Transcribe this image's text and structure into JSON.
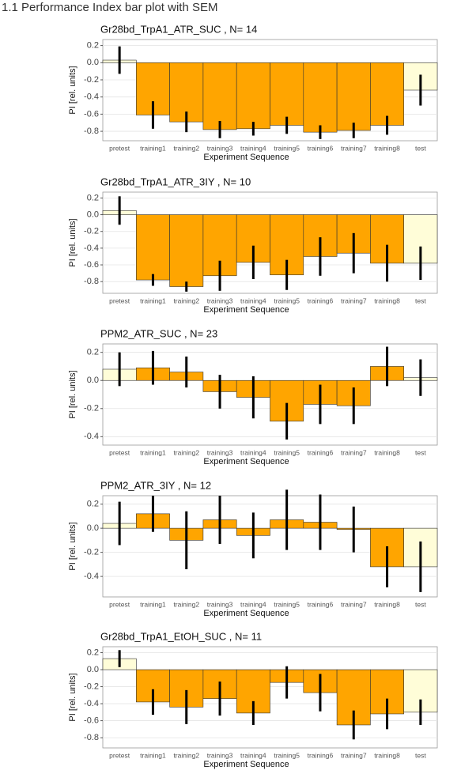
{
  "heading": "1.1 Performance Index bar plot with SEM",
  "chart_data": [
    {
      "type": "bar",
      "title": "Gr28bd_TrpA1_ATR_SUC , N= 14",
      "xlabel": "Experiment Sequence",
      "ylabel": "PI [rel. units]",
      "categories": [
        "pretest",
        "training1",
        "training2",
        "training3",
        "training4",
        "training5",
        "training6",
        "training7",
        "training8",
        "test"
      ],
      "values": [
        0.03,
        -0.61,
        -0.69,
        -0.78,
        -0.77,
        -0.73,
        -0.81,
        -0.79,
        -0.73,
        -0.32
      ],
      "errors": [
        0.16,
        0.16,
        0.12,
        0.1,
        0.08,
        0.1,
        0.08,
        0.09,
        0.11,
        0.18
      ],
      "colors": [
        "#fffdd8",
        "#ffa500",
        "#ffa500",
        "#ffa500",
        "#ffa500",
        "#ffa500",
        "#ffa500",
        "#ffa500",
        "#ffa500",
        "#fffdd8"
      ],
      "ylim": [
        -0.91,
        0.27
      ],
      "yticks": [
        0.2,
        {
          "value": 0,
          "label": "0.0"
        },
        -0.2,
        -0.4,
        -0.6,
        -0.8
      ],
      "grid": true
    },
    {
      "type": "bar",
      "title": "Gr28bd_TrpA1_ATR_3IY , N= 10",
      "xlabel": "Experiment Sequence",
      "ylabel": "PI [rel. units]",
      "categories": [
        "pretest",
        "training1",
        "training2",
        "training3",
        "training4",
        "training5",
        "training6",
        "training7",
        "training8",
        "test"
      ],
      "values": [
        0.05,
        -0.78,
        -0.86,
        -0.73,
        -0.57,
        -0.72,
        -0.5,
        -0.46,
        -0.58,
        -0.58
      ],
      "errors": [
        0.17,
        0.07,
        0.06,
        0.18,
        0.2,
        0.18,
        0.23,
        0.24,
        0.22,
        0.2
      ],
      "colors": [
        "#fffdd8",
        "#ffa500",
        "#ffa500",
        "#ffa500",
        "#ffa500",
        "#ffa500",
        "#ffa500",
        "#ffa500",
        "#ffa500",
        "#fffdd8"
      ],
      "ylim": [
        -0.94,
        0.27
      ],
      "yticks": [
        0.2,
        {
          "value": 0,
          "label": "0.0"
        },
        -0.2,
        -0.4,
        -0.6,
        -0.8
      ],
      "grid": true
    },
    {
      "type": "bar",
      "title": "PPM2_ATR_SUC , N= 23",
      "xlabel": "Experiment Sequence",
      "ylabel": "PI [rel. units]",
      "categories": [
        "pretest",
        "training1",
        "training2",
        "training3",
        "training4",
        "training5",
        "training6",
        "training7",
        "training8",
        "test"
      ],
      "values": [
        0.08,
        0.09,
        0.06,
        -0.08,
        -0.12,
        -0.29,
        -0.17,
        -0.18,
        0.1,
        0.02
      ],
      "errors": [
        0.12,
        0.12,
        0.11,
        0.12,
        0.15,
        0.13,
        0.14,
        0.13,
        0.14,
        0.13
      ],
      "colors": [
        "#fffdd8",
        "#ffa500",
        "#ffa500",
        "#ffa500",
        "#ffa500",
        "#ffa500",
        "#ffa500",
        "#ffa500",
        "#ffa500",
        "#fffdd8"
      ],
      "ylim": [
        -0.46,
        0.26
      ],
      "yticks": [
        0.2,
        {
          "value": 0,
          "label": "0.0"
        },
        -0.2,
        -0.4
      ],
      "grid": true
    },
    {
      "type": "bar",
      "title": "PPM2_ATR_3IY , N= 12",
      "xlabel": "Experiment Sequence",
      "ylabel": "PI [rel. units]",
      "categories": [
        "pretest",
        "training1",
        "training2",
        "training3",
        "training4",
        "training5",
        "training6",
        "training7",
        "training8",
        "test"
      ],
      "values": [
        0.04,
        0.12,
        -0.1,
        0.07,
        -0.06,
        0.07,
        0.05,
        -0.01,
        -0.32,
        -0.32
      ],
      "errors": [
        0.18,
        0.15,
        0.24,
        0.2,
        0.19,
        0.25,
        0.23,
        0.19,
        0.17,
        0.21
      ],
      "colors": [
        "#fffdd8",
        "#ffa500",
        "#ffa500",
        "#ffa500",
        "#ffa500",
        "#ffa500",
        "#ffa500",
        "#ffa500",
        "#ffa500",
        "#fffdd8"
      ],
      "ylim": [
        -0.57,
        0.27
      ],
      "yticks": [
        0.2,
        {
          "value": 0,
          "label": "0.0"
        },
        -0.2,
        -0.4
      ],
      "grid": true
    },
    {
      "type": "bar",
      "title": "Gr28bd_TrpA1_EtOH_SUC , N= 11",
      "xlabel": "Experiment Sequence",
      "ylabel": "PI [rel. units]",
      "categories": [
        "pretest",
        "training1",
        "training2",
        "training3",
        "training4",
        "training5",
        "training6",
        "training7",
        "training8",
        "test"
      ],
      "values": [
        0.13,
        -0.38,
        -0.44,
        -0.34,
        -0.51,
        -0.15,
        -0.27,
        -0.65,
        -0.52,
        -0.5
      ],
      "errors": [
        0.1,
        0.15,
        0.2,
        0.2,
        0.14,
        0.19,
        0.22,
        0.17,
        0.18,
        0.15
      ],
      "colors": [
        "#fffdd8",
        "#ffa500",
        "#ffa500",
        "#ffa500",
        "#ffa500",
        "#ffa500",
        "#ffa500",
        "#ffa500",
        "#ffa500",
        "#fffdd8"
      ],
      "ylim": [
        -0.92,
        0.27
      ],
      "yticks": [
        0.2,
        {
          "value": 0,
          "label": "0.0"
        },
        -0.2,
        -0.4,
        -0.6,
        -0.8
      ],
      "grid": true
    }
  ]
}
